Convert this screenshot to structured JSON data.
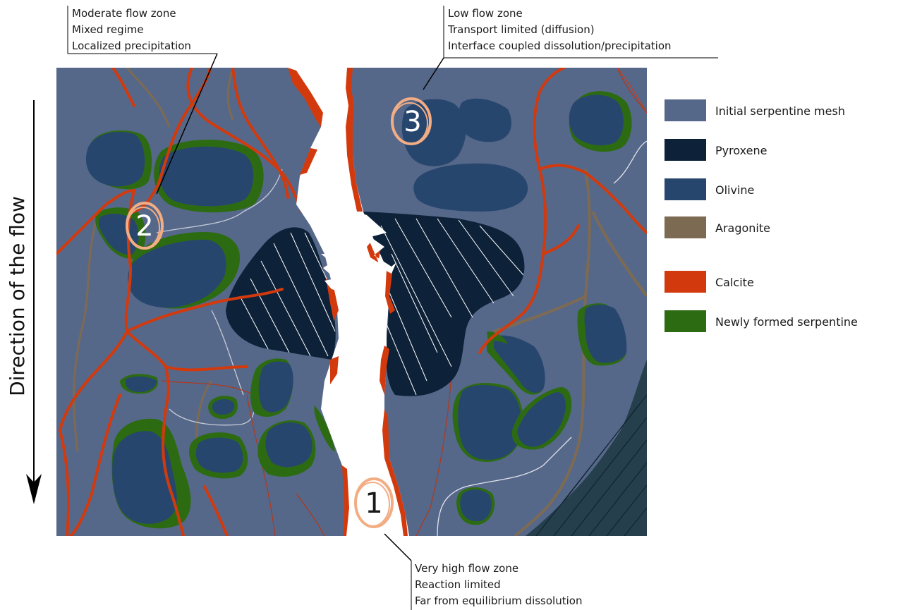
{
  "direction_label": "Direction of the flow",
  "annotations": [
    {
      "id": "zone2",
      "lines": [
        "Moderate flow zone",
        "Mixed regime",
        "Localized precipitation"
      ]
    },
    {
      "id": "zone3",
      "lines": [
        "Low flow zone",
        "Transport limited (diffusion)",
        "Interface coupled dissolution/precipitation"
      ]
    },
    {
      "id": "zone1",
      "lines": [
        "Very high flow zone",
        "Reaction limited",
        "Far from equilibrium dissolution"
      ]
    }
  ],
  "zones": [
    {
      "number": "1"
    },
    {
      "number": "2"
    },
    {
      "number": "3"
    }
  ],
  "legend": [
    {
      "label": "Initial serpentine mesh",
      "color": "#56688a"
    },
    {
      "label": "Pyroxene",
      "color": "#0d2138"
    },
    {
      "label": "Olivine",
      "color": "#27466e"
    },
    {
      "label": "Aragonite",
      "color": "#7d6a52"
    },
    {
      "label": "Calcite",
      "color": "#d23a0e"
    },
    {
      "label": "Newly formed serpentine",
      "color": "#2d6b12"
    }
  ],
  "colors": {
    "mesh": "#56688a",
    "pyroxene": "#0d2138",
    "olivine": "#27466e",
    "aragonite": "#7d6a52",
    "calcite": "#d23a0e",
    "new_serpentine": "#2d6b12",
    "zone_circle": "#f2ad84",
    "corner_block": "#253f4d"
  }
}
